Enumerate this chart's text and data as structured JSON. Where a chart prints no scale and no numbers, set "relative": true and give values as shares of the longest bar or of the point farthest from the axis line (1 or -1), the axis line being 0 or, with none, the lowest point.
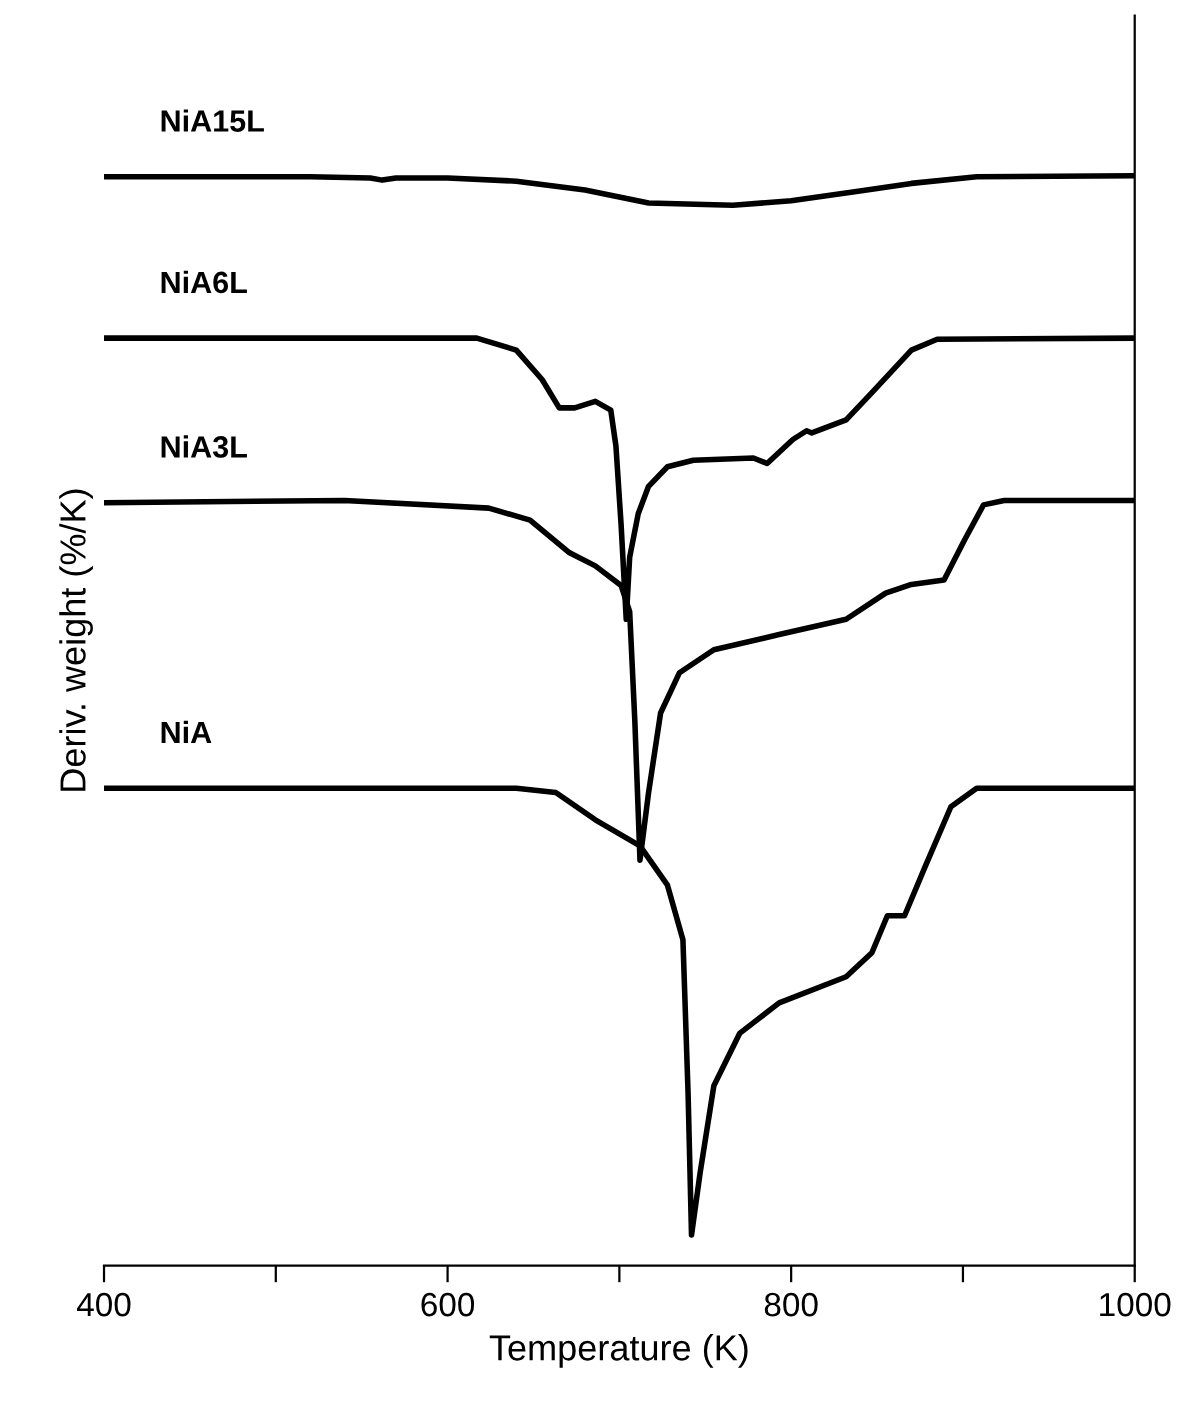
{
  "chart_data": {
    "type": "line",
    "relative": true,
    "xlabel": "Temperature (K)",
    "ylabel": "Deriv. weight (%/K)",
    "xlim": [
      400,
      1000
    ],
    "xticks": [
      400,
      {
        "value": 500,
        "label": null
      },
      600,
      {
        "value": 700,
        "label": null
      },
      800,
      {
        "value": 900,
        "label": null
      },
      1000
    ],
    "grid": false,
    "legend": false,
    "marker": "none",
    "line_style": "solid",
    "series": [
      {
        "name": "NiA15L",
        "color": "#000000",
        "x": [
          400,
          520,
          555,
          562,
          570,
          600,
          640,
          680,
          717,
          766,
          800,
          840,
          870,
          908,
          1000
        ],
        "values": [
          0.999,
          0.999,
          0.998,
          0.996,
          0.998,
          0.998,
          0.995,
          0.987,
          0.975,
          0.973,
          0.977,
          0.986,
          0.993,
          0.999,
          1.0
        ]
      },
      {
        "name": "NiA6L",
        "color": "#000000",
        "x": [
          400,
          617,
          640,
          655,
          665,
          674,
          686,
          695,
          698,
          701,
          704,
          706,
          711,
          717,
          728,
          743,
          778,
          786,
          801,
          809,
          812,
          832,
          847,
          870,
          885,
          1000
        ],
        "values": [
          0.851,
          0.851,
          0.84,
          0.813,
          0.787,
          0.787,
          0.793,
          0.785,
          0.752,
          0.68,
          0.593,
          0.65,
          0.69,
          0.715,
          0.733,
          0.739,
          0.741,
          0.736,
          0.758,
          0.766,
          0.764,
          0.776,
          0.801,
          0.84,
          0.85,
          0.851
        ]
      },
      {
        "name": "NiA3L",
        "color": "#000000",
        "x": [
          400,
          540,
          624,
          648,
          671,
          686,
          701,
          706,
          709,
          712,
          717,
          724,
          735,
          755,
          793,
          832,
          855,
          870,
          889,
          901,
          912,
          924,
          1000
        ],
        "values": [
          0.7,
          0.702,
          0.695,
          0.684,
          0.654,
          0.642,
          0.624,
          0.6,
          0.5,
          0.372,
          0.434,
          0.507,
          0.544,
          0.565,
          0.579,
          0.593,
          0.617,
          0.625,
          0.629,
          0.666,
          0.698,
          0.702,
          0.702
        ]
      },
      {
        "name": "NiA",
        "color": "#000000",
        "x": [
          400,
          640,
          663,
          686,
          712,
          728,
          737,
          740,
          742,
          747,
          755,
          770,
          793,
          832,
          847,
          856,
          866,
          878,
          893,
          908,
          1000
        ],
        "values": [
          0.438,
          0.438,
          0.434,
          0.409,
          0.385,
          0.349,
          0.299,
          0.158,
          0.028,
          0.085,
          0.165,
          0.213,
          0.241,
          0.265,
          0.287,
          0.321,
          0.321,
          0.366,
          0.421,
          0.438,
          0.438
        ]
      }
    ]
  }
}
